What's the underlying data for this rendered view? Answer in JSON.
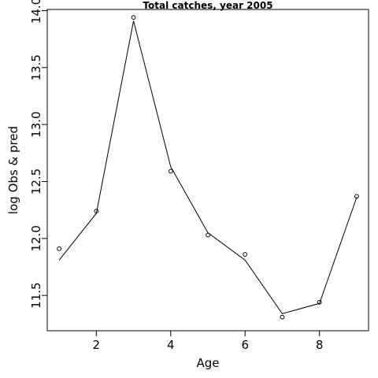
{
  "chart_data": {
    "type": "line",
    "title": "Total catches, year 2005",
    "xlabel": "Age",
    "ylabel": "log Obs & pred",
    "xlim": [
      0.68,
      9.32
    ],
    "ylim": [
      11.19,
      14.01
    ],
    "x_ticks": [
      2,
      4,
      6,
      8
    ],
    "y_ticks": [
      11.5,
      12.0,
      12.5,
      13.0,
      13.5,
      14.0
    ],
    "y_tick_labels": [
      "11.5",
      "12.0",
      "12.5",
      "13.0",
      "13.5",
      "14.0"
    ],
    "grid": false,
    "legend": "none",
    "series": [
      {
        "kind": "observed",
        "style": "points-open-circle",
        "x": [
          1,
          2,
          3,
          4,
          5,
          6,
          7,
          8,
          9
        ],
        "y": [
          11.91,
          12.24,
          13.94,
          12.59,
          12.03,
          11.86,
          11.31,
          11.44,
          12.37
        ]
      },
      {
        "kind": "predicted",
        "style": "line",
        "x": [
          1,
          2,
          3,
          4,
          5,
          6,
          7,
          8,
          9
        ],
        "y": [
          11.81,
          12.22,
          13.91,
          12.63,
          12.05,
          11.81,
          11.34,
          11.43,
          12.36
        ]
      }
    ]
  }
}
